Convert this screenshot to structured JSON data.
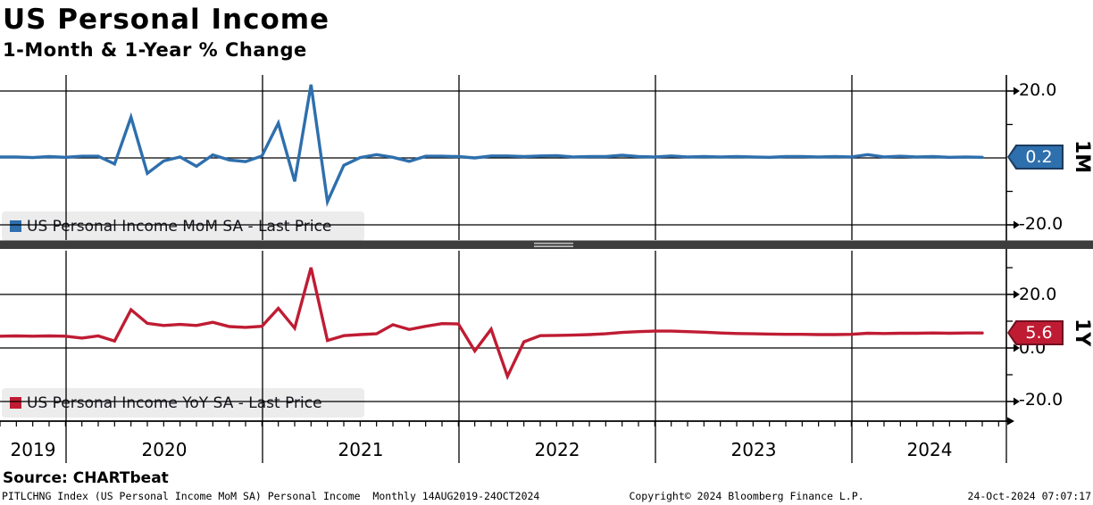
{
  "header": {
    "title": "US Personal Income",
    "subtitle": "1-Month & 1-Year % Change"
  },
  "chart_data": {
    "type": "line",
    "frequency": "Monthly",
    "x_range_shown": "14AUG2019-24OCT2024",
    "x_start_month": "Aug 2019",
    "x_end_month": "Aug 2024",
    "x_year_labels": [
      "2019",
      "2020",
      "2021",
      "2022",
      "2023",
      "2024"
    ],
    "grid": "on",
    "panels": [
      {
        "name": "1M",
        "legend": "US Personal Income MoM SA - Last Price",
        "color": "#2e6fad",
        "badge_value": "0.2",
        "tick_labels": [
          "20.0",
          "-20.0"
        ],
        "tick_values": [
          20,
          -20
        ],
        "minor_tick_values": [
          10,
          -10
        ],
        "ylim": [
          -24.5,
          24.5
        ],
        "values": [
          0.3,
          0.3,
          0.1,
          0.4,
          0.2,
          0.5,
          0.5,
          -1.8,
          12.2,
          -4.6,
          -0.9,
          0.3,
          -2.5,
          0.9,
          -0.6,
          -1.1,
          0.6,
          10.4,
          -7.0,
          21.9,
          -13.1,
          -2.2,
          0.1,
          1.0,
          0.2,
          -1.0,
          0.5,
          0.5,
          0.4,
          0.0,
          0.6,
          0.6,
          0.4,
          0.6,
          0.7,
          0.3,
          0.4,
          0.4,
          0.8,
          0.4,
          0.3,
          0.6,
          0.3,
          0.4,
          0.3,
          0.4,
          0.3,
          0.2,
          0.4,
          0.4,
          0.3,
          0.4,
          0.3,
          1.0,
          0.3,
          0.5,
          0.3,
          0.4,
          0.2,
          0.3,
          0.2
        ]
      },
      {
        "name": "1Y",
        "legend": "US Personal Income YoY SA - Last Price",
        "color": "#bf1c33",
        "badge_value": "5.6",
        "tick_labels": [
          "20.0",
          "0.0",
          "-20.0"
        ],
        "tick_values": [
          20,
          0,
          -20
        ],
        "minor_tick_values": [
          30,
          10,
          -10
        ],
        "ylim": [
          -27,
          36
        ],
        "values": [
          4.4,
          4.5,
          4.4,
          4.5,
          4.4,
          3.7,
          4.5,
          2.6,
          14.3,
          9.2,
          8.4,
          8.8,
          8.4,
          9.6,
          8.0,
          7.7,
          8.1,
          14.8,
          7.4,
          30.0,
          2.8,
          4.6,
          5.0,
          5.3,
          8.7,
          6.9,
          8.1,
          9.1,
          9.0,
          -1.1,
          7.0,
          -10.6,
          2.3,
          4.6,
          4.7,
          4.8,
          5.0,
          5.3,
          5.8,
          6.1,
          6.3,
          6.3,
          6.1,
          5.9,
          5.6,
          5.4,
          5.3,
          5.2,
          5.1,
          5.1,
          5.0,
          5.0,
          5.1,
          5.5,
          5.4,
          5.5,
          5.5,
          5.6,
          5.5,
          5.6,
          5.6
        ]
      }
    ]
  },
  "source": {
    "label": "Source: CHARTbeat"
  },
  "footer": {
    "left": "PITLCHNG Index (US Personal Income MoM SA) Personal Income  Monthly 14AUG2019-24OCT2024",
    "center": "Copyright© 2024 Bloomberg Finance L.P.",
    "right": "24-Oct-2024 07:07:17"
  }
}
